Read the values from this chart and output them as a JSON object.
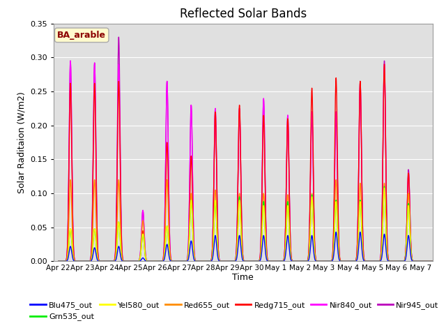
{
  "title": "Reflected Solar Bands",
  "xlabel": "Time",
  "ylabel": "Solar Raditaion (W/m2)",
  "ylim": [
    0.0,
    0.35
  ],
  "annotation": "BA_arable",
  "annotation_color": "#8B0000",
  "annotation_bg": "#FFFACD",
  "bg_color": "#E0E0E0",
  "lines": {
    "Blu475_out": "#0000FF",
    "Grn535_out": "#00EE00",
    "Yel580_out": "#FFFF00",
    "Red655_out": "#FF8C00",
    "Redg715_out": "#FF0000",
    "Nir840_out": "#FF00FF",
    "Nir945_out": "#BB00BB"
  },
  "xtick_labels": [
    "Apr 22",
    "Apr 23",
    "Apr 24",
    "Apr 25",
    "Apr 26",
    "Apr 27",
    "Apr 28",
    "Apr 29",
    "Apr 30",
    "May 1",
    "May 2",
    "May 3",
    "May 4",
    "May 5",
    "May 6",
    "May 7"
  ],
  "num_days": 16,
  "blu_peaks": [
    0.022,
    0.02,
    0.022,
    0.005,
    0.025,
    0.03,
    0.038,
    0.038,
    0.038,
    0.038,
    0.038,
    0.043,
    0.043,
    0.04,
    0.038,
    0.0
  ],
  "grn_peaks": [
    0.048,
    0.048,
    0.058,
    0.04,
    0.052,
    0.09,
    0.09,
    0.095,
    0.088,
    0.088,
    0.098,
    0.09,
    0.09,
    0.11,
    0.085,
    0.0
  ],
  "yel_peaks": [
    0.048,
    0.048,
    0.058,
    0.04,
    0.052,
    0.09,
    0.09,
    0.09,
    0.082,
    0.082,
    0.095,
    0.088,
    0.088,
    0.108,
    0.082,
    0.0
  ],
  "red_peaks": [
    0.12,
    0.12,
    0.12,
    0.06,
    0.12,
    0.1,
    0.105,
    0.1,
    0.1,
    0.098,
    0.1,
    0.12,
    0.115,
    0.115,
    0.1,
    0.0
  ],
  "redg_peaks": [
    0.262,
    0.262,
    0.265,
    0.045,
    0.175,
    0.155,
    0.22,
    0.23,
    0.215,
    0.21,
    0.255,
    0.27,
    0.265,
    0.29,
    0.13,
    0.0
  ],
  "nir840_peaks": [
    0.295,
    0.292,
    0.29,
    0.075,
    0.265,
    0.23,
    0.225,
    0.225,
    0.24,
    0.215,
    0.22,
    0.22,
    0.26,
    0.29,
    0.13,
    0.0
  ],
  "nir945_peaks": [
    0.295,
    0.292,
    0.33,
    0.075,
    0.265,
    0.23,
    0.225,
    0.225,
    0.238,
    0.215,
    0.22,
    0.22,
    0.265,
    0.295,
    0.135,
    0.0
  ],
  "sigma": 0.055
}
